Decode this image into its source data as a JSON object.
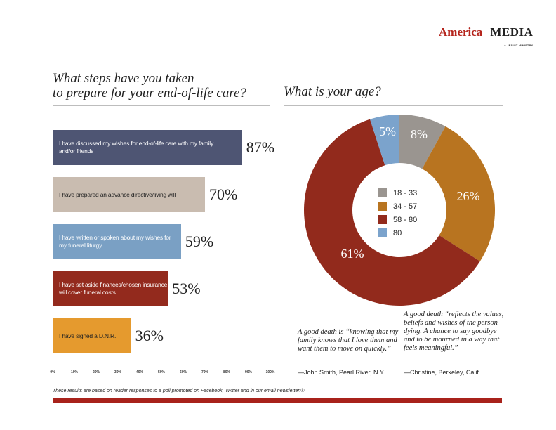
{
  "logo": {
    "left": "America",
    "right": "MEDIA",
    "tagline": "A JESUIT MINISTRY"
  },
  "left_title": {
    "line1": "What steps have you taken",
    "line2": "to prepare for your end-of-life care?"
  },
  "right_title": "What is your age?",
  "colors": {
    "bar1": "#4e5573",
    "bar2": "#c9bcb0",
    "bar3": "#7aa0c4",
    "bar4": "#932a1d",
    "bar5": "#e59a2e",
    "age1": "#9a9590",
    "age2": "#b87420",
    "age3": "#922a1c",
    "age4": "#7ba3cc",
    "footer_rule": "#a8221b"
  },
  "chart_data": [
    {
      "type": "bar",
      "orientation": "horizontal",
      "categories": [
        "I have discussed my wishes for end-of-life care with my family and/or friends",
        "I have prepared an advance directive/living will",
        "I have written or spoken about my wishes for my funeral liturgy",
        "I have set aside finances/chosen insurance that will cover funeral costs",
        "I have signed a D.N.R."
      ],
      "values": [
        87,
        70,
        59,
        53,
        36
      ],
      "value_labels": [
        "87%",
        "70%",
        "59%",
        "53%",
        "36%"
      ],
      "xlim": [
        0,
        100
      ],
      "xticks": [
        "0%",
        "10%",
        "20%",
        "30%",
        "40%",
        "50%",
        "60%",
        "70%",
        "80%",
        "90%",
        "100%"
      ]
    },
    {
      "type": "pie",
      "donut": true,
      "categories": [
        "18 - 33",
        "34 - 57",
        "58 - 80",
        "80+"
      ],
      "values": [
        8,
        26,
        61,
        5
      ],
      "value_labels": [
        "8%",
        "26%",
        "61%",
        "5%"
      ],
      "legend": "center"
    }
  ],
  "quotes": [
    {
      "text": "A good death is “knowing that my family knows that I love them and want them to move on quickly.”",
      "attribution": "—John Smith, Pearl River, N.Y."
    },
    {
      "text": "A good death “reflects the values, beliefs and wishes of the person dying. A chance to say goodbye and to be mourned in a way that feels meaningful.”",
      "attribution": "—Christine, Berkeley, Calif."
    }
  ],
  "footer_note": "These results are based on reader responses to a poll promoted on Facebook, Twitter and in our email newsletter.®"
}
